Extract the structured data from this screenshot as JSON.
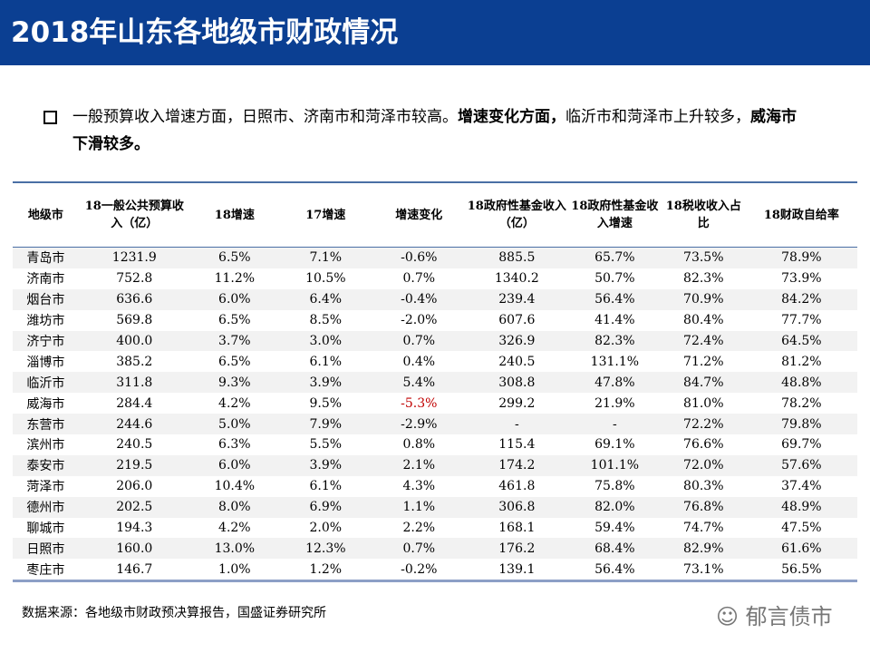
{
  "title": "2018年山东各地级市财政情况",
  "bullet": {
    "p1": "一般预算收入增速方面，日照市、济南市和菏泽市较高。",
    "p2": "增速变化方面，",
    "p3": "临沂市和菏泽市上升较多，",
    "p4": "威海市下滑较多。"
  },
  "headers": [
    "地级市",
    "18一般公共预算收入（亿）",
    "18增速",
    "17增速",
    "增速变化",
    "18政府性基金收入（亿）",
    "18政府性基金收入增速",
    "18税收收入占比",
    "18财政自给率"
  ],
  "rows": [
    [
      "青岛市",
      "1231.9",
      "6.5%",
      "7.1%",
      "-0.6%",
      "885.5",
      "65.7%",
      "73.5%",
      "78.9%"
    ],
    [
      "济南市",
      "752.8",
      "11.2%",
      "10.5%",
      "0.7%",
      "1340.2",
      "50.7%",
      "82.3%",
      "73.9%"
    ],
    [
      "烟台市",
      "636.6",
      "6.0%",
      "6.4%",
      "-0.4%",
      "239.4",
      "56.4%",
      "70.9%",
      "84.2%"
    ],
    [
      "潍坊市",
      "569.8",
      "6.5%",
      "8.5%",
      "-2.0%",
      "607.6",
      "41.4%",
      "80.4%",
      "77.7%"
    ],
    [
      "济宁市",
      "400.0",
      "3.7%",
      "3.0%",
      "0.7%",
      "326.9",
      "82.3%",
      "72.4%",
      "64.5%"
    ],
    [
      "淄博市",
      "385.2",
      "6.5%",
      "6.1%",
      "0.4%",
      "240.5",
      "131.1%",
      "71.2%",
      "81.2%"
    ],
    [
      "临沂市",
      "311.8",
      "9.3%",
      "3.9%",
      "5.4%",
      "308.8",
      "47.8%",
      "84.7%",
      "48.8%"
    ],
    [
      "威海市",
      "284.4",
      "4.2%",
      "9.5%",
      "-5.3%",
      "299.2",
      "21.9%",
      "81.0%",
      "78.2%"
    ],
    [
      "东营市",
      "244.6",
      "5.0%",
      "7.9%",
      "-2.9%",
      "-",
      "-",
      "72.2%",
      "79.8%"
    ],
    [
      "滨州市",
      "240.5",
      "6.3%",
      "5.5%",
      "0.8%",
      "115.4",
      "69.1%",
      "76.6%",
      "69.7%"
    ],
    [
      "泰安市",
      "219.5",
      "6.0%",
      "3.9%",
      "2.1%",
      "174.2",
      "101.1%",
      "72.0%",
      "57.6%"
    ],
    [
      "菏泽市",
      "206.0",
      "10.4%",
      "6.1%",
      "4.3%",
      "461.8",
      "75.8%",
      "80.3%",
      "37.4%"
    ],
    [
      "德州市",
      "202.5",
      "8.0%",
      "6.9%",
      "1.1%",
      "306.8",
      "82.0%",
      "76.8%",
      "48.9%"
    ],
    [
      "聊城市",
      "194.3",
      "4.2%",
      "2.0%",
      "2.2%",
      "168.1",
      "59.4%",
      "74.7%",
      "47.5%"
    ],
    [
      "日照市",
      "160.0",
      "13.0%",
      "12.3%",
      "0.7%",
      "176.2",
      "68.4%",
      "82.9%",
      "61.6%"
    ],
    [
      "枣庄市",
      "146.7",
      "1.0%",
      "1.2%",
      "-0.2%",
      "139.1",
      "56.4%",
      "73.1%",
      "56.5%"
    ]
  ],
  "highlight": {
    "row": 7,
    "col": 4,
    "color": "#c00000"
  },
  "source": "数据来源：各地级市财政预决算报告，国盛证券研究所",
  "watermark": "郁言债市"
}
